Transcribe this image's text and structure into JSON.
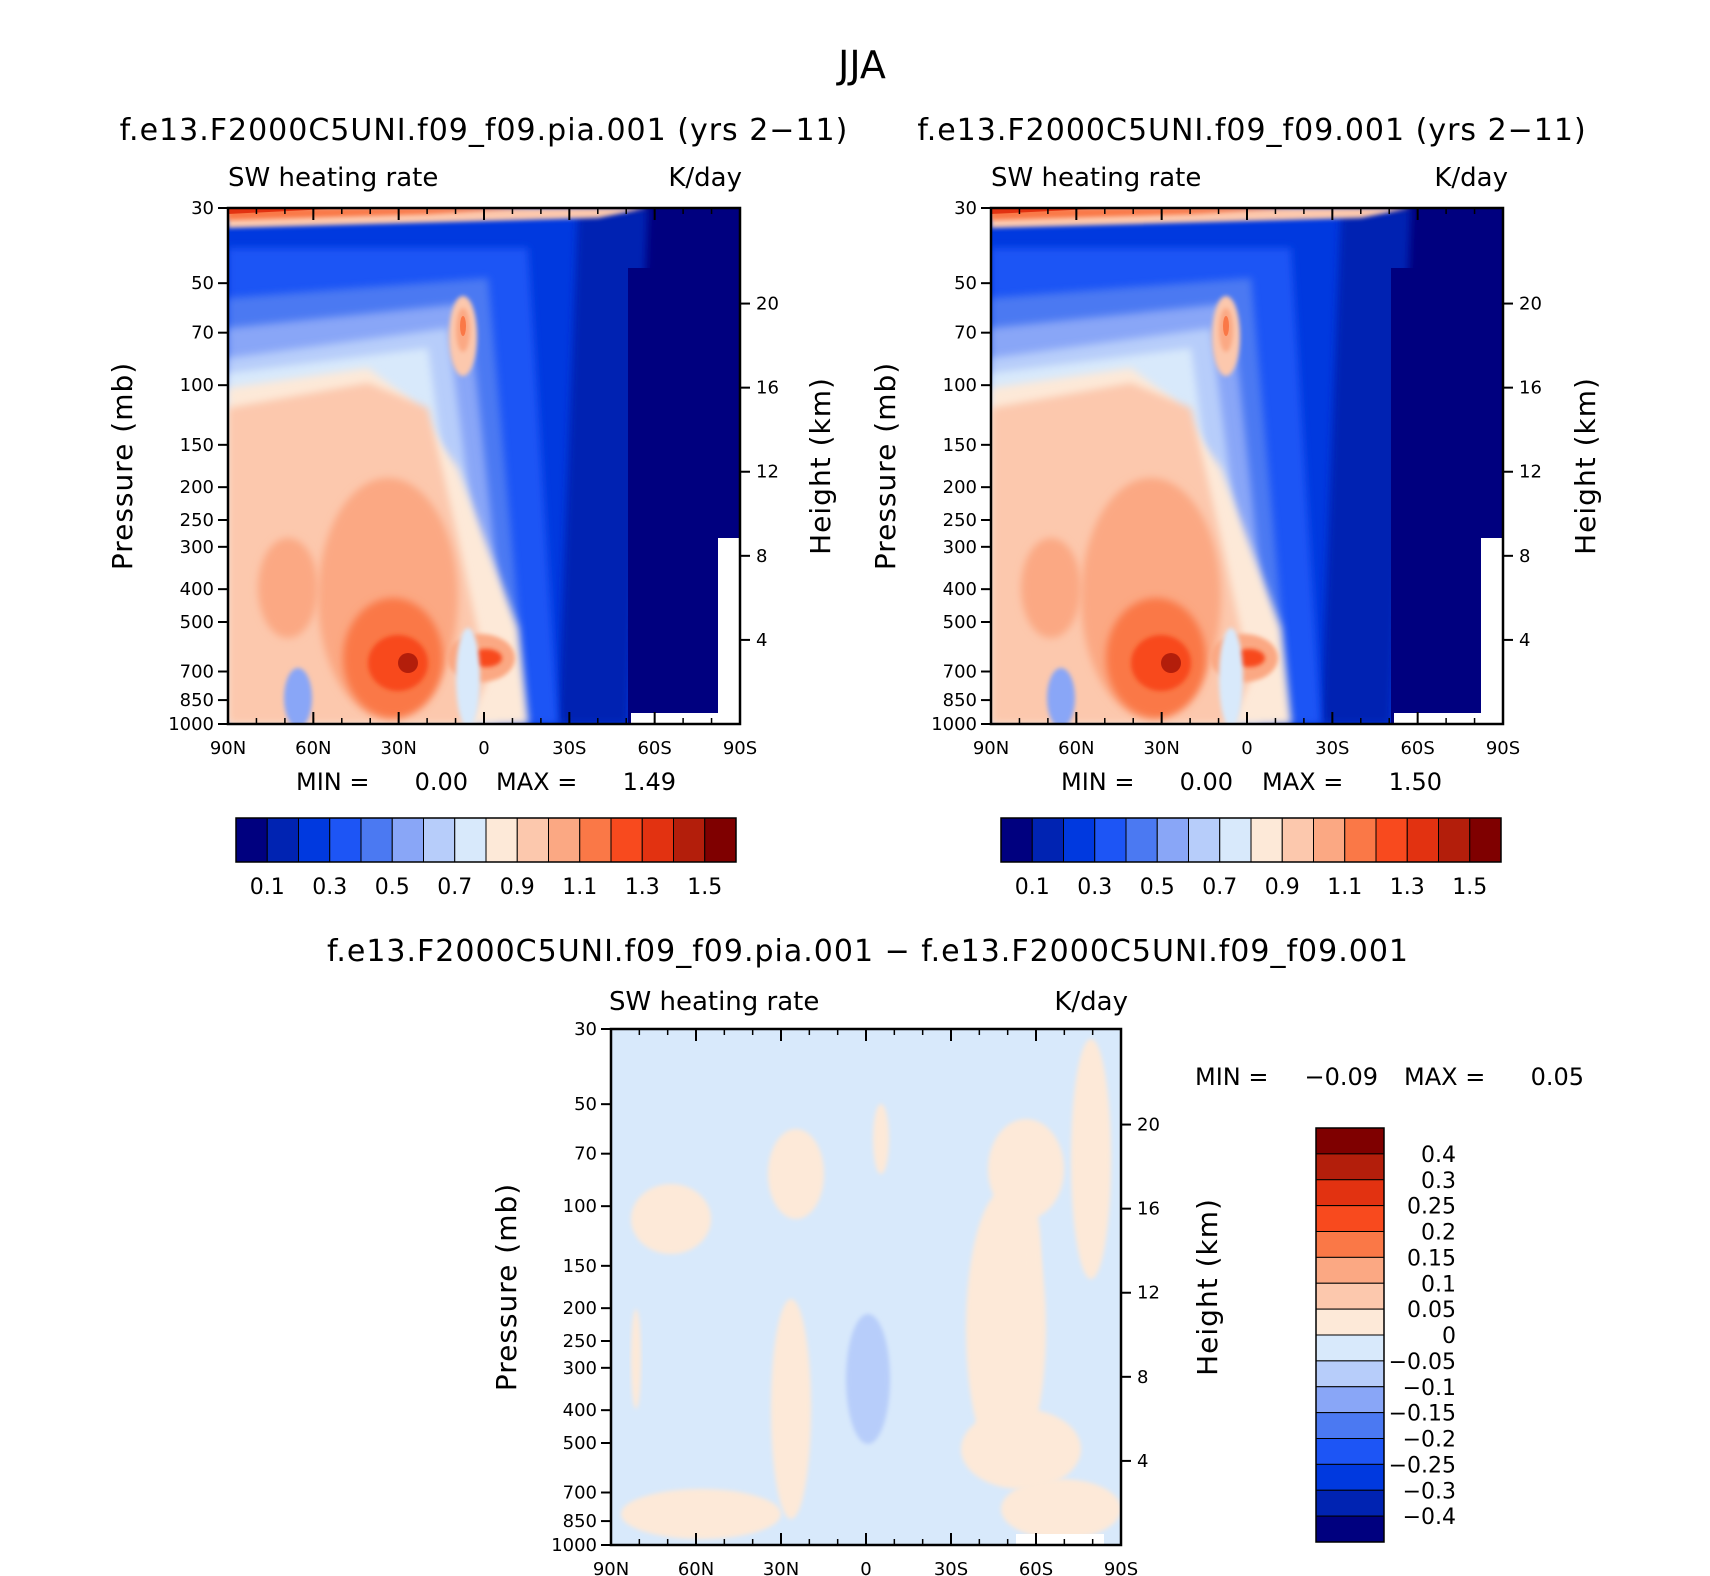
{
  "figure": {
    "title": "JJA"
  },
  "colors": {
    "abs_levels": [
      "#00007f",
      "#0023b2",
      "#0039df",
      "#1d55f5",
      "#4b79f2",
      "#89a6f7",
      "#b7cdfa",
      "#d8e9fb",
      "#fde9d8",
      "#fcc8ad",
      "#fba883",
      "#fa7847",
      "#f84a1e",
      "#e23211",
      "#b31e0b",
      "#7f0000"
    ],
    "diff_levels": [
      "#00007f",
      "#0023b2",
      "#0039df",
      "#1d55f5",
      "#4b79f2",
      "#89a6f7",
      "#b7cdfa",
      "#d8e9fb",
      "#fde9d8",
      "#fcc8ad",
      "#fba883",
      "#fa7847",
      "#f84a1e",
      "#e23211",
      "#b31e0b",
      "#7f0000"
    ]
  },
  "chart_data": [
    {
      "type": "heatmap",
      "panel": "top-left",
      "title": "f.e13.F2000C5UNI.f09_f09.pia.001 (yrs 2−11)",
      "left_label": "SW heating rate",
      "right_label": "K/day",
      "ylabel": "Pressure (mb)",
      "y2label": "Height (km)",
      "x_ticks": [
        "90N",
        "60N",
        "30N",
        "0",
        "30S",
        "60S",
        "90S"
      ],
      "y_ticks": [
        30,
        50,
        70,
        100,
        150,
        200,
        250,
        300,
        400,
        500,
        700,
        850,
        1000
      ],
      "y2_ticks": [
        20,
        16,
        12,
        8,
        4
      ],
      "xlim": [
        90,
        -90
      ],
      "ylim": [
        1000,
        30
      ],
      "min_label": "MIN =",
      "min_value": "0.00",
      "max_label": "MAX =",
      "max_value": "1.49",
      "colorbar_labels": [
        "0.1",
        "0.3",
        "0.5",
        "0.7",
        "0.9",
        "1.1",
        "1.3",
        "1.5"
      ],
      "field_values_kday": {
        "upper_troposphere": 0.1,
        "mid_troposphere_north": 0.9,
        "peak_850mb_25N": 1.49,
        "peak_850mb_5S": 1.3,
        "upper_tropical_plume": 1.1,
        "south_polar": 0.0
      }
    },
    {
      "type": "heatmap",
      "panel": "top-right",
      "title": "f.e13.F2000C5UNI.f09_f09.001 (yrs 2−11)",
      "left_label": "SW heating rate",
      "right_label": "K/day",
      "ylabel": "Pressure (mb)",
      "y2label": "Height (km)",
      "x_ticks": [
        "90N",
        "60N",
        "30N",
        "0",
        "30S",
        "60S",
        "90S"
      ],
      "y_ticks": [
        30,
        50,
        70,
        100,
        150,
        200,
        250,
        300,
        400,
        500,
        700,
        850,
        1000
      ],
      "y2_ticks": [
        20,
        16,
        12,
        8,
        4
      ],
      "xlim": [
        90,
        -90
      ],
      "ylim": [
        1000,
        30
      ],
      "min_label": "MIN =",
      "min_value": "0.00",
      "max_label": "MAX =",
      "max_value": "1.50",
      "colorbar_labels": [
        "0.1",
        "0.3",
        "0.5",
        "0.7",
        "0.9",
        "1.1",
        "1.3",
        "1.5"
      ],
      "field_values_kday": {
        "upper_troposphere": 0.1,
        "mid_troposphere_north": 0.9,
        "peak_850mb_25N": 1.5,
        "peak_850mb_5S": 1.3,
        "upper_tropical_plume": 1.1,
        "south_polar": 0.0
      }
    },
    {
      "type": "heatmap",
      "panel": "bottom",
      "title": "f.e13.F2000C5UNI.f09_f09.pia.001 − f.e13.F2000C5UNI.f09_f09.001",
      "left_label": "SW heating rate",
      "right_label": "K/day",
      "ylabel": "Pressure (mb)",
      "y2label": "Height (km)",
      "x_ticks": [
        "90N",
        "60N",
        "30N",
        "0",
        "30S",
        "60S",
        "90S"
      ],
      "y_ticks": [
        30,
        50,
        70,
        100,
        150,
        200,
        250,
        300,
        400,
        500,
        700,
        850,
        1000
      ],
      "y2_ticks": [
        20,
        16,
        12,
        8,
        4
      ],
      "xlim": [
        90,
        -90
      ],
      "ylim": [
        1000,
        30
      ],
      "min_label": "MIN =",
      "min_value": "−0.09",
      "max_label": "MAX =",
      "max_value": "0.05",
      "colorbar_labels": [
        "0.4",
        "0.3",
        "0.25",
        "0.2",
        "0.15",
        "0.1",
        "0.05",
        "0",
        "−0.05",
        "−0.1",
        "−0.15",
        "−0.2",
        "−0.25",
        "−0.3",
        "−0.4"
      ],
      "field_values_kday": {
        "background": -0.02,
        "scattered_positive_patches": 0.02,
        "negative_patch_0N_800mb": -0.07
      }
    }
  ]
}
